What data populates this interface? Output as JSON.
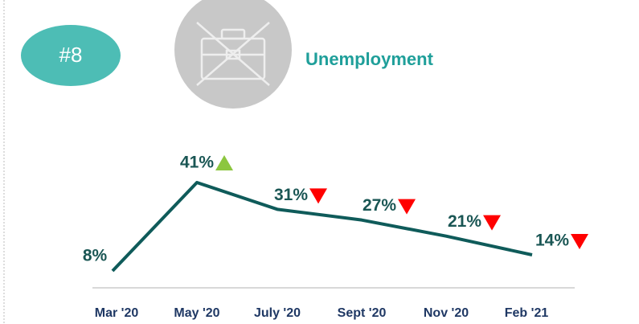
{
  "badge": "#8",
  "chart_data": {
    "type": "line",
    "title": "Unemployment",
    "categories": [
      "Mar '20",
      "May '20",
      "July '20",
      "Sept '20",
      "Nov '20",
      "Feb '21"
    ],
    "values": [
      8,
      41,
      31,
      27,
      21,
      14
    ],
    "value_labels": [
      "8%",
      "41%",
      "31%",
      "27%",
      "21%",
      "14%"
    ],
    "color": "#0f5b5a"
  }
}
